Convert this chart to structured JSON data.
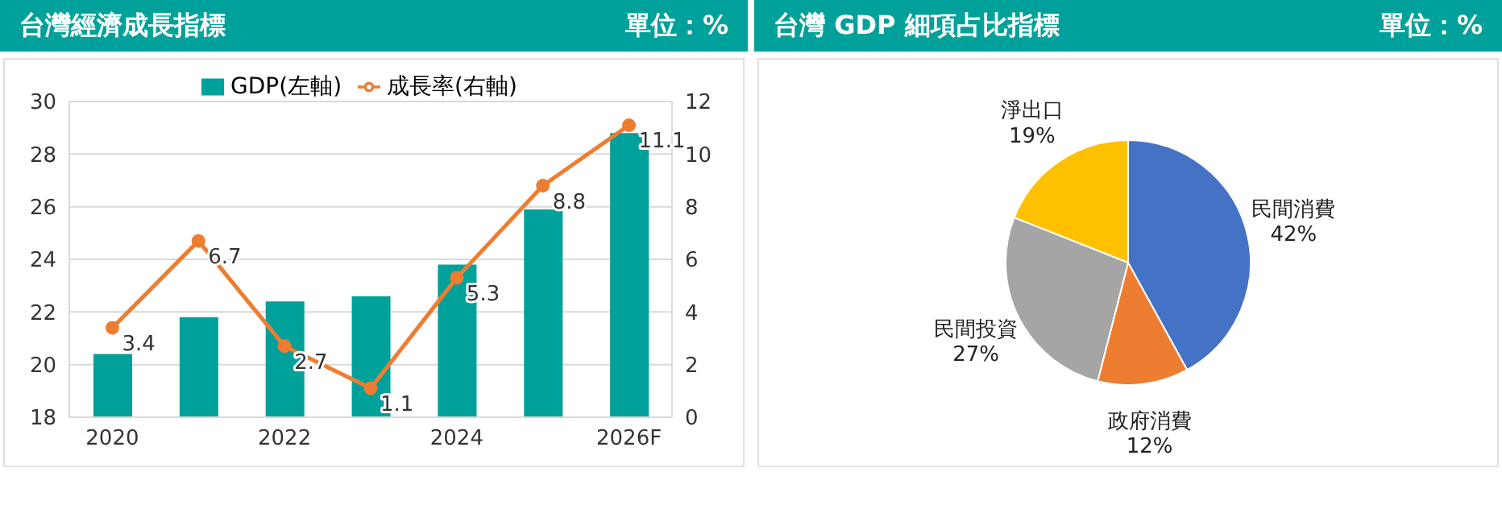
{
  "chart_data": [
    {
      "type": "bar",
      "title": "台灣經濟成長指標",
      "subtitle": "單位：%",
      "categories": [
        "2020",
        null,
        "2022",
        null,
        "2024",
        null,
        "2026F"
      ],
      "series": [
        {
          "name": "GDP(左軸)",
          "type": "bar",
          "color": "#00a19a",
          "values": [
            20.4,
            21.8,
            22.4,
            22.6,
            23.8,
            25.9,
            28.8
          ]
        },
        {
          "name": "成長率(右軸)",
          "type": "line",
          "axis": "y2",
          "color": "#ed7d31",
          "values": [
            3.4,
            6.7,
            2.7,
            1.1,
            5.3,
            8.8,
            11.1
          ],
          "value_labels": [
            "3.4",
            "6.7",
            "2.7",
            "1.1",
            "5.3",
            "8.8",
            "11.1"
          ]
        }
      ],
      "ylim": [
        18,
        30
      ],
      "yticks": [
        18,
        20,
        22,
        24,
        26,
        28,
        30
      ],
      "y2lim": [
        0,
        12
      ],
      "y2ticks": [
        0,
        2,
        4,
        6,
        8,
        10,
        12
      ],
      "grid": "y",
      "legend": "top",
      "marker": "circle"
    },
    {
      "type": "pie",
      "title": "台灣 GDP 細項占比指標",
      "subtitle": "單位：%",
      "categories": [
        "民間消費",
        "政府消費",
        "民間投資",
        "淨出口"
      ],
      "values": [
        42,
        12,
        27,
        19
      ],
      "value_labels": [
        "42%",
        "12%",
        "27%",
        "19%"
      ],
      "colors": [
        "#4472c4",
        "#ed7d31",
        "#a5a5a5",
        "#ffc000"
      ],
      "legend": false
    }
  ]
}
